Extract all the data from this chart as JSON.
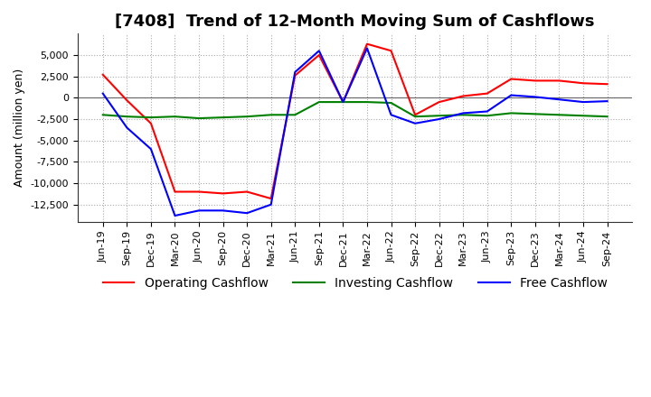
{
  "title": "[7408]  Trend of 12-Month Moving Sum of Cashflows",
  "ylabel": "Amount (million yen)",
  "ylim": [
    -14500,
    7500
  ],
  "yticks": [
    5000,
    2500,
    0,
    -2500,
    -5000,
    -7500,
    -10000,
    -12500
  ],
  "x_labels": [
    "Jun-19",
    "Sep-19",
    "Dec-19",
    "Mar-20",
    "Jun-20",
    "Sep-20",
    "Dec-20",
    "Mar-21",
    "Jun-21",
    "Sep-21",
    "Dec-21",
    "Mar-22",
    "Jun-22",
    "Sep-22",
    "Dec-22",
    "Mar-23",
    "Jun-23",
    "Sep-23",
    "Dec-23",
    "Mar-24",
    "Jun-24",
    "Sep-24"
  ],
  "operating": [
    2700,
    -300,
    -3000,
    -11000,
    -11000,
    -11200,
    -11000,
    -11800,
    2600,
    5000,
    -500,
    6300,
    5500,
    -2000,
    -500,
    200,
    500,
    2200,
    2000,
    2000,
    1700,
    1600
  ],
  "investing": [
    -2000,
    -2200,
    -2300,
    -2200,
    -2400,
    -2300,
    -2200,
    -2000,
    -2000,
    -500,
    -500,
    -500,
    -600,
    -2200,
    -2100,
    -2000,
    -2100,
    -1800,
    -1900,
    -2000,
    -2100,
    -2200
  ],
  "free": [
    500,
    -3500,
    -6000,
    -13800,
    -13200,
    -13200,
    -13500,
    -12500,
    3000,
    5500,
    -500,
    5800,
    -2000,
    -3000,
    -2500,
    -1800,
    -1600,
    300,
    100,
    -200,
    -500,
    -400
  ],
  "colors": {
    "operating": "#FF0000",
    "investing": "#008000",
    "free": "#0000FF"
  },
  "background": "#FFFFFF",
  "grid_color": "#AAAAAA",
  "title_fontsize": 13,
  "label_fontsize": 9,
  "tick_fontsize": 8
}
